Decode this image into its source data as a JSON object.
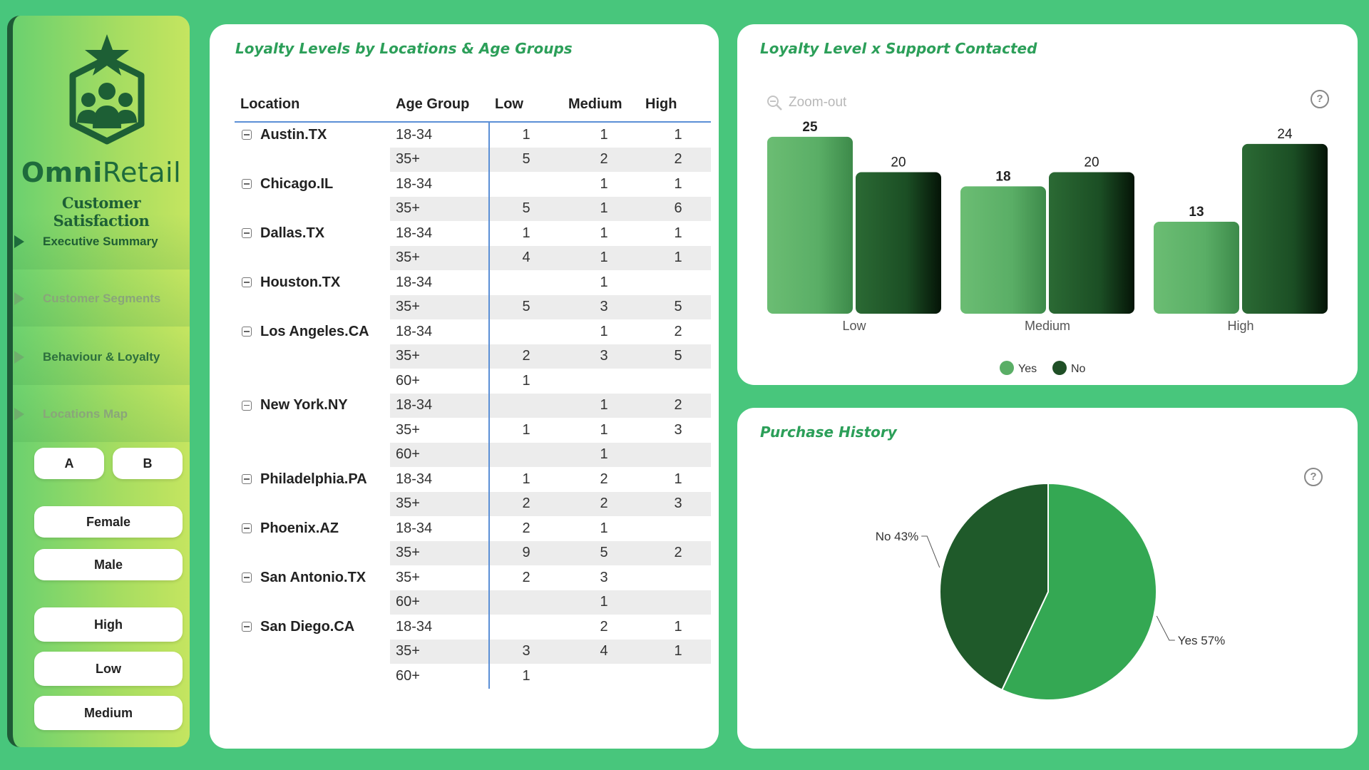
{
  "sidebar": {
    "brand_bold": "Omni",
    "brand_rest": "Retail",
    "tagline": "Customer Satisfaction",
    "nav": [
      {
        "label": "Executive Summary"
      },
      {
        "label": "Customer Segments"
      },
      {
        "label": "Behaviour & Loyalty"
      },
      {
        "label": "Locations Map"
      }
    ],
    "filters": {
      "segment_a": "A",
      "segment_b": "B",
      "female": "Female",
      "male": "Male",
      "high": "High",
      "low": "Low",
      "medium": "Medium"
    }
  },
  "matrix": {
    "title": "Loyalty Levels by Locations & Age Groups",
    "headers": {
      "location": "Location",
      "age": "Age Group",
      "low": "Low",
      "medium": "Medium",
      "high": "High"
    },
    "rows": [
      {
        "loc": "Austin.TX",
        "age": "18-34",
        "low": "1",
        "med": "1",
        "high": "1"
      },
      {
        "loc": "",
        "age": "35+",
        "low": "5",
        "med": "2",
        "high": "2"
      },
      {
        "loc": "Chicago.IL",
        "age": "18-34",
        "low": "",
        "med": "1",
        "high": "1"
      },
      {
        "loc": "",
        "age": "35+",
        "low": "5",
        "med": "1",
        "high": "6"
      },
      {
        "loc": "Dallas.TX",
        "age": "18-34",
        "low": "1",
        "med": "1",
        "high": "1"
      },
      {
        "loc": "",
        "age": "35+",
        "low": "4",
        "med": "1",
        "high": "1"
      },
      {
        "loc": "Houston.TX",
        "age": "18-34",
        "low": "",
        "med": "1",
        "high": ""
      },
      {
        "loc": "",
        "age": "35+",
        "low": "5",
        "med": "3",
        "high": "5"
      },
      {
        "loc": "Los Angeles.CA",
        "age": "18-34",
        "low": "",
        "med": "1",
        "high": "2"
      },
      {
        "loc": "",
        "age": "35+",
        "low": "2",
        "med": "3",
        "high": "5"
      },
      {
        "loc": "",
        "age": "60+",
        "low": "1",
        "med": "",
        "high": ""
      },
      {
        "loc": "New York.NY",
        "age": "18-34",
        "low": "",
        "med": "1",
        "high": "2"
      },
      {
        "loc": "",
        "age": "35+",
        "low": "1",
        "med": "1",
        "high": "3"
      },
      {
        "loc": "",
        "age": "60+",
        "low": "",
        "med": "1",
        "high": ""
      },
      {
        "loc": "Philadelphia.PA",
        "age": "18-34",
        "low": "1",
        "med": "2",
        "high": "1"
      },
      {
        "loc": "",
        "age": "35+",
        "low": "2",
        "med": "2",
        "high": "3"
      },
      {
        "loc": "Phoenix.AZ",
        "age": "18-34",
        "low": "2",
        "med": "1",
        "high": ""
      },
      {
        "loc": "",
        "age": "35+",
        "low": "9",
        "med": "5",
        "high": "2"
      },
      {
        "loc": "San Antonio.TX",
        "age": "35+",
        "low": "2",
        "med": "3",
        "high": ""
      },
      {
        "loc": "",
        "age": "60+",
        "low": "",
        "med": "1",
        "high": ""
      },
      {
        "loc": "San Diego.CA",
        "age": "18-34",
        "low": "",
        "med": "2",
        "high": "1"
      },
      {
        "loc": "",
        "age": "35+",
        "low": "3",
        "med": "4",
        "high": "1"
      },
      {
        "loc": "",
        "age": "60+",
        "low": "1",
        "med": "",
        "high": ""
      }
    ]
  },
  "bar_card": {
    "title": "Loyalty Level x Support Contacted",
    "zoom_label": "Zoom-out",
    "help": "?"
  },
  "pie_card": {
    "title": "Purchase History",
    "help": "?"
  },
  "chart_data": [
    {
      "type": "bar",
      "categories": [
        "Low",
        "Medium",
        "High"
      ],
      "series": [
        {
          "name": "Yes",
          "values": [
            25,
            18,
            13
          ],
          "color": "#5fb86c"
        },
        {
          "name": "No",
          "values": [
            20,
            20,
            24
          ],
          "color": "#1f5a2a"
        }
      ],
      "ylim": [
        0,
        26
      ],
      "legend": "bottom",
      "grid": false,
      "data_labels": true
    },
    {
      "type": "pie",
      "labels": [
        "Yes",
        "No"
      ],
      "values": [
        57,
        43
      ],
      "display_labels": [
        "Yes 57%",
        "No 43%"
      ],
      "colors": [
        "#34a853",
        "#1f5a2a"
      ]
    }
  ]
}
